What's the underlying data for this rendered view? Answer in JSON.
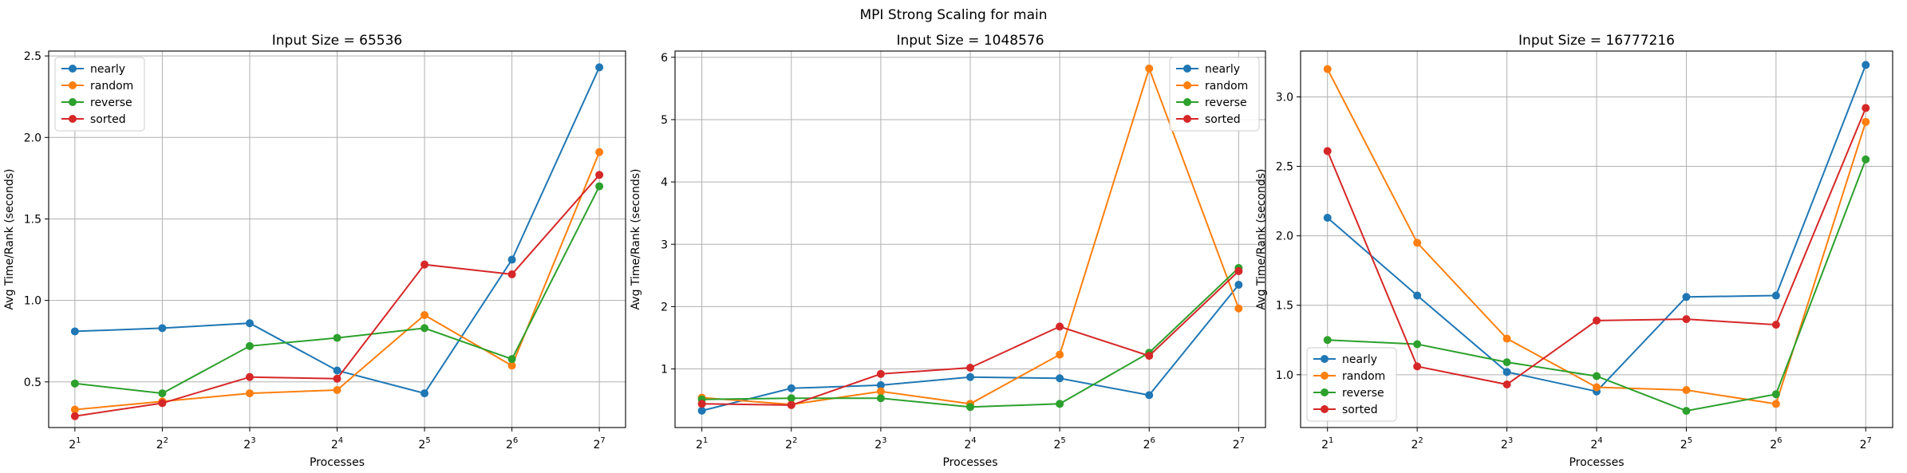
{
  "figure": {
    "suptitle": "MPI Strong Scaling for main"
  },
  "colors": {
    "nearly": "#1f77b4",
    "random": "#ff7f0e",
    "reverse": "#2ca02c",
    "sorted": "#d62728"
  },
  "chart_data": [
    {
      "type": "line",
      "title": "Input Size = 65536",
      "xlabel": "Processes",
      "ylabel": "Avg Time/Rank (seconds)",
      "x": [
        2,
        4,
        8,
        16,
        32,
        64,
        128
      ],
      "x_tick_labels": [
        {
          "base": "2",
          "exp": "1"
        },
        {
          "base": "2",
          "exp": "2"
        },
        {
          "base": "2",
          "exp": "3"
        },
        {
          "base": "2",
          "exp": "4"
        },
        {
          "base": "2",
          "exp": "5"
        },
        {
          "base": "2",
          "exp": "6"
        },
        {
          "base": "2",
          "exp": "7"
        }
      ],
      "x_scale": "log2",
      "ylim": [
        0.22,
        2.53
      ],
      "yticks": [
        0.5,
        1.0,
        1.5,
        2.0,
        2.5
      ],
      "ytick_labels": [
        "0.5",
        "1.0",
        "1.5",
        "2.0",
        "2.5"
      ],
      "grid": true,
      "legend": "upper-left",
      "series": [
        {
          "name": "nearly",
          "values": [
            0.81,
            0.83,
            0.86,
            0.57,
            0.43,
            1.25,
            2.43
          ]
        },
        {
          "name": "random",
          "values": [
            0.33,
            0.38,
            0.43,
            0.45,
            0.91,
            0.6,
            1.91
          ]
        },
        {
          "name": "reverse",
          "values": [
            0.49,
            0.43,
            0.72,
            0.77,
            0.83,
            0.64,
            1.7
          ]
        },
        {
          "name": "sorted",
          "values": [
            0.29,
            0.37,
            0.53,
            0.52,
            1.22,
            1.16,
            1.77
          ]
        }
      ]
    },
    {
      "type": "line",
      "title": "Input Size = 1048576",
      "xlabel": "Processes",
      "ylabel": "Avg Time/Rank (seconds)",
      "x": [
        2,
        4,
        8,
        16,
        32,
        64,
        128
      ],
      "x_tick_labels": [
        {
          "base": "2",
          "exp": "1"
        },
        {
          "base": "2",
          "exp": "2"
        },
        {
          "base": "2",
          "exp": "3"
        },
        {
          "base": "2",
          "exp": "4"
        },
        {
          "base": "2",
          "exp": "5"
        },
        {
          "base": "2",
          "exp": "6"
        },
        {
          "base": "2",
          "exp": "7"
        }
      ],
      "x_scale": "log2",
      "ylim": [
        0.06,
        6.1
      ],
      "yticks": [
        1,
        2,
        3,
        4,
        5,
        6
      ],
      "ytick_labels": [
        "1",
        "2",
        "3",
        "4",
        "5",
        "6"
      ],
      "grid": true,
      "legend": "upper-right",
      "series": [
        {
          "name": "nearly",
          "values": [
            0.33,
            0.69,
            0.74,
            0.87,
            0.85,
            0.58,
            2.35
          ]
        },
        {
          "name": "random",
          "values": [
            0.54,
            0.43,
            0.64,
            0.44,
            1.23,
            5.82,
            1.97
          ]
        },
        {
          "name": "reverse",
          "values": [
            0.51,
            0.53,
            0.53,
            0.39,
            0.44,
            1.26,
            2.62
          ]
        },
        {
          "name": "sorted",
          "values": [
            0.44,
            0.42,
            0.92,
            1.02,
            1.68,
            1.21,
            2.57
          ]
        }
      ]
    },
    {
      "type": "line",
      "title": "Input Size = 16777216",
      "xlabel": "Processes",
      "ylabel": "Avg Time/Rank (seconds)",
      "x": [
        2,
        4,
        8,
        16,
        32,
        64,
        128
      ],
      "x_tick_labels": [
        {
          "base": "2",
          "exp": "1"
        },
        {
          "base": "2",
          "exp": "2"
        },
        {
          "base": "2",
          "exp": "3"
        },
        {
          "base": "2",
          "exp": "4"
        },
        {
          "base": "2",
          "exp": "5"
        },
        {
          "base": "2",
          "exp": "6"
        },
        {
          "base": "2",
          "exp": "7"
        }
      ],
      "x_scale": "log2",
      "ylim": [
        0.62,
        3.33
      ],
      "yticks": [
        1.0,
        1.5,
        2.0,
        2.5,
        3.0
      ],
      "ytick_labels": [
        "1.0",
        "1.5",
        "2.0",
        "2.5",
        "3.0"
      ],
      "grid": true,
      "legend": "lower-left",
      "series": [
        {
          "name": "nearly",
          "values": [
            2.13,
            1.57,
            1.02,
            0.88,
            1.56,
            1.57,
            3.23
          ]
        },
        {
          "name": "random",
          "values": [
            3.2,
            1.95,
            1.26,
            0.91,
            0.89,
            0.79,
            2.82
          ]
        },
        {
          "name": "reverse",
          "values": [
            1.25,
            1.22,
            1.09,
            0.99,
            0.74,
            0.86,
            2.55
          ]
        },
        {
          "name": "sorted",
          "values": [
            2.61,
            1.06,
            0.93,
            1.39,
            1.4,
            1.36,
            2.92
          ]
        }
      ]
    }
  ]
}
